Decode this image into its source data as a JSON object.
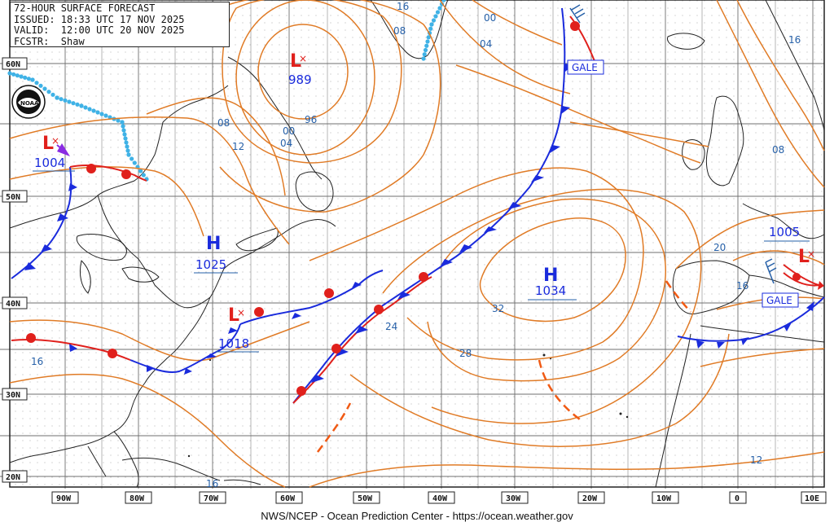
{
  "header": {
    "line1": "72-HOUR SURFACE FORECAST",
    "line2": "ISSUED: 18:33 UTC 17 NOV 2025",
    "line3": "VALID:  12:00 UTC 20 NOV 2025",
    "line4": "FCSTR:  Shaw"
  },
  "footer": "NWS/NCEP - Ocean Prediction Center - https://ocean.weather.gov",
  "logo": {
    "text": "NOAA"
  },
  "lat_labels": [
    "60N",
    "50N",
    "40N",
    "30N",
    "20N"
  ],
  "lon_labels": [
    "90W",
    "80W",
    "70W",
    "60W",
    "50W",
    "40W",
    "30W",
    "20W",
    "10W",
    "0",
    "10E"
  ],
  "pressure_centers": [
    {
      "type": "L",
      "value": "989"
    },
    {
      "type": "L",
      "value": "1004"
    },
    {
      "type": "H",
      "value": "1025"
    },
    {
      "type": "L",
      "value": "1018"
    },
    {
      "type": "H",
      "value": "1034"
    },
    {
      "type": "L",
      "value": "1005"
    }
  ],
  "isobar_labels": [
    "16",
    "08",
    "00",
    "04",
    "96",
    "00",
    "04",
    "08",
    "12",
    "16",
    "08",
    "16",
    "20",
    "16",
    "24",
    "28",
    "32",
    "12",
    "16"
  ],
  "warnings": [
    "GALE",
    "GALE"
  ],
  "colors": {
    "isobar": "#e07b26",
    "grid": "#6f6f6f",
    "coast": "#222222",
    "cold_front": "#1a2bdc",
    "warm_front": "#e0201c",
    "ice": "#3fb2e6",
    "trough": "#f05a14",
    "label": "#2660a8"
  }
}
